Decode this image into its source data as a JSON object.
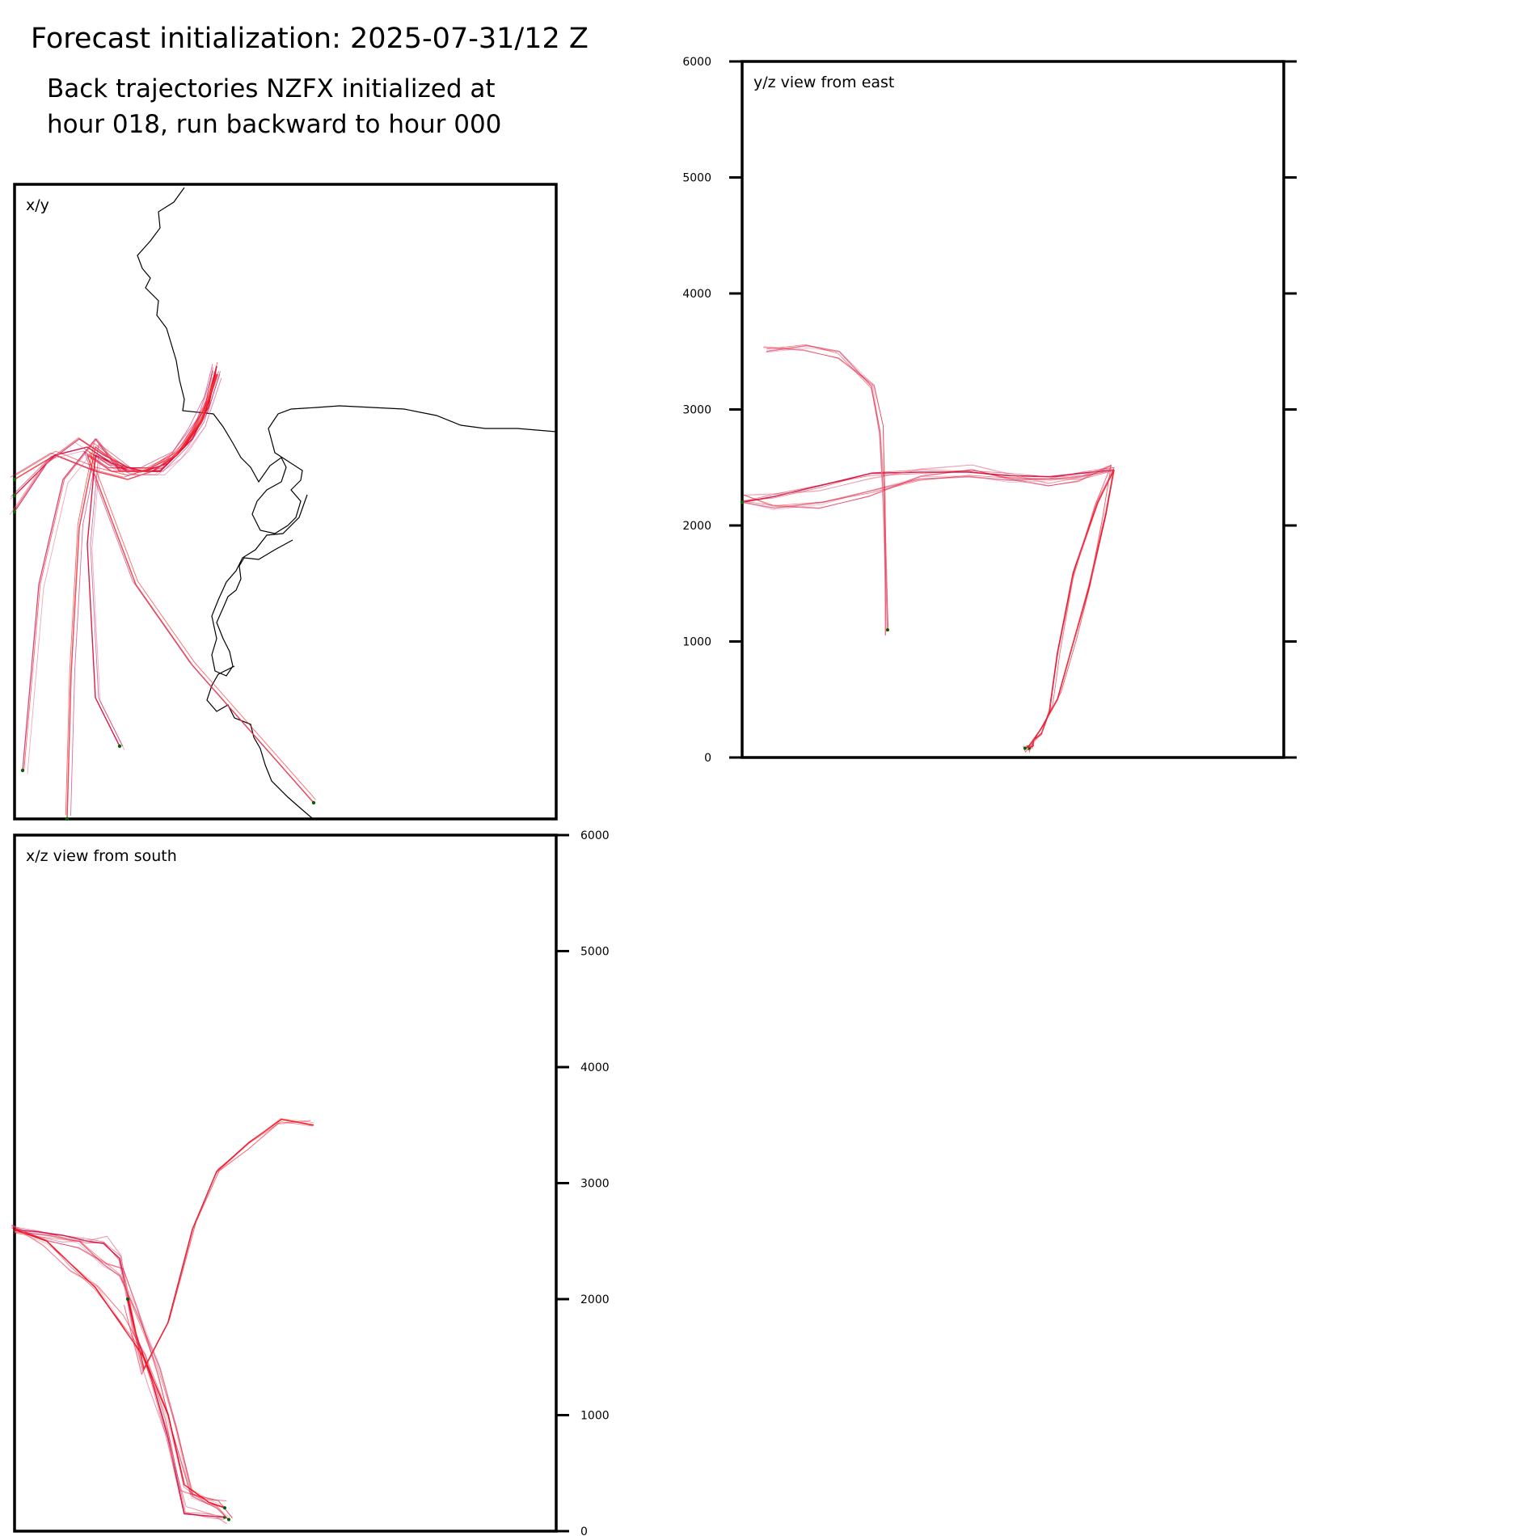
{
  "header": {
    "title": "Forecast initialization: 2025-07-31/12 Z",
    "subtitle_line1": "Back trajectories NZFX initialized at",
    "subtitle_line2": "hour 018, run backward to hour 000"
  },
  "colors": {
    "trajectory_primary": "#ff0000",
    "trajectory_secondary": "#c0105a",
    "trajectory_faint": "#e07090",
    "endpoint_marker": "#006400",
    "coastline": "#000000"
  },
  "chart_data": [
    {
      "type": "line",
      "panel": "x/y",
      "label": "x/y",
      "description_of_content": "map view with coastline",
      "series": [
        {
          "x": [
            2.5,
            2.4,
            2.2,
            2.0,
            1.7,
            1.4,
            1.0,
            0.5,
            0.0
          ],
          "y": [
            5.6,
            5.2,
            4.8,
            4.5,
            4.3,
            4.2,
            4.3,
            4.5,
            4.2
          ]
        },
        {
          "x": [
            2.5,
            2.4,
            2.2,
            1.9,
            1.6,
            1.2,
            0.9,
            0.5,
            0.0
          ],
          "y": [
            5.6,
            5.1,
            4.7,
            4.4,
            4.3,
            4.4,
            4.6,
            4.5,
            4.0
          ]
        },
        {
          "x": [
            2.5,
            2.35,
            2.1,
            1.8,
            1.5,
            1.1,
            0.8,
            0.4,
            0.0
          ],
          "y": [
            5.5,
            5.0,
            4.6,
            4.3,
            4.3,
            4.5,
            4.7,
            4.4,
            3.8
          ]
        },
        {
          "x": [
            2.5,
            2.35,
            2.1,
            1.8,
            1.4,
            1.0,
            0.8,
            0.7,
            0.65
          ],
          "y": [
            5.5,
            5.0,
            4.6,
            4.3,
            4.3,
            4.6,
            3.6,
            1.8,
            0.0
          ]
        },
        {
          "x": [
            2.5,
            2.3,
            2.1,
            1.8,
            1.4,
            1.0,
            0.9,
            1.0,
            1.3
          ],
          "y": [
            5.5,
            4.9,
            4.6,
            4.3,
            4.3,
            4.5,
            3.4,
            1.5,
            0.9
          ]
        },
        {
          "x": [
            2.5,
            2.3,
            2.0,
            1.7,
            1.3,
            1.0,
            0.6,
            0.3,
            0.1
          ],
          "y": [
            5.5,
            4.9,
            4.5,
            4.3,
            4.3,
            4.7,
            4.2,
            2.9,
            0.6
          ]
        },
        {
          "x": [
            2.5,
            2.3,
            2.0,
            1.6,
            1.2,
            0.9,
            1.5,
            2.2,
            3.7
          ],
          "y": [
            5.5,
            4.9,
            4.5,
            4.3,
            4.3,
            4.5,
            2.9,
            1.9,
            0.2
          ]
        }
      ],
      "endpoints": [
        [
          0.0,
          4.2
        ],
        [
          0.0,
          4.0
        ],
        [
          0.0,
          3.8
        ],
        [
          0.65,
          0.0
        ],
        [
          1.3,
          0.9
        ],
        [
          0.1,
          0.6
        ],
        [
          3.7,
          0.2
        ]
      ]
    },
    {
      "type": "line",
      "panel": "y/z",
      "label": "y/z view from east",
      "ylim": [
        0,
        6000
      ],
      "yticks": [
        0,
        1000,
        2000,
        3000,
        4000,
        5000,
        6000
      ],
      "series": [
        {
          "x": [
            4.6,
            4.2,
            3.8,
            3.3,
            2.8,
            2.2,
            1.6,
            1.0,
            0.4,
            0.0
          ],
          "z": [
            2480,
            2450,
            2420,
            2430,
            2460,
            2460,
            2450,
            2350,
            2250,
            2200
          ]
        },
        {
          "x": [
            4.6,
            4.2,
            3.8,
            3.3,
            2.8,
            2.2,
            1.6,
            1.0,
            0.4,
            0.0
          ],
          "z": [
            2480,
            2420,
            2400,
            2390,
            2420,
            2400,
            2300,
            2200,
            2150,
            2200
          ]
        },
        {
          "x": [
            4.6,
            4.4,
            4.1,
            3.9,
            3.8,
            3.7,
            3.6,
            3.6,
            3.55
          ],
          "z": [
            2480,
            2200,
            1600,
            900,
            400,
            200,
            150,
            100,
            80
          ]
        },
        {
          "x": [
            4.6,
            4.5,
            4.3,
            4.1,
            3.9,
            3.7,
            3.6,
            3.55,
            3.5
          ],
          "z": [
            2480,
            2100,
            1500,
            1000,
            500,
            250,
            150,
            100,
            80
          ]
        },
        {
          "x": [
            0.3,
            0.8,
            1.2,
            1.6,
            1.7,
            1.75,
            1.8
          ],
          "z": [
            3500,
            3550,
            3500,
            3200,
            2800,
            2200,
            1100
          ]
        }
      ]
    },
    {
      "type": "line",
      "panel": "x/z",
      "label": "x/z view from south",
      "ylim": [
        0,
        6000
      ],
      "yticks": [
        0,
        1000,
        2000,
        3000,
        4000,
        5000,
        6000
      ],
      "series": [
        {
          "x": [
            0.0,
            0.3,
            0.6,
            0.9,
            1.1,
            1.3,
            1.5,
            1.7,
            1.9,
            2.1,
            2.4,
            2.6
          ],
          "z": [
            2600,
            2580,
            2550,
            2500,
            2480,
            2350,
            1700,
            1300,
            800,
            150,
            130,
            120
          ]
        },
        {
          "x": [
            0.0,
            0.4,
            0.8,
            1.1,
            1.3,
            1.5,
            1.8,
            2.0,
            2.2,
            2.5,
            2.65
          ],
          "z": [
            2580,
            2550,
            2500,
            2300,
            2200,
            1900,
            1400,
            900,
            300,
            200,
            100
          ]
        },
        {
          "x": [
            0.0,
            0.4,
            0.7,
            1.0,
            1.3,
            1.6,
            1.9,
            2.1,
            2.4,
            2.6
          ],
          "z": [
            2600,
            2500,
            2300,
            2100,
            1800,
            1500,
            1000,
            400,
            250,
            200
          ]
        },
        {
          "x": [
            3.7,
            3.3,
            2.9,
            2.5,
            2.2,
            1.9,
            1.6,
            1.4
          ],
          "z": [
            3500,
            3550,
            3350,
            3100,
            2600,
            1800,
            1400,
            2000
          ]
        }
      ]
    }
  ]
}
